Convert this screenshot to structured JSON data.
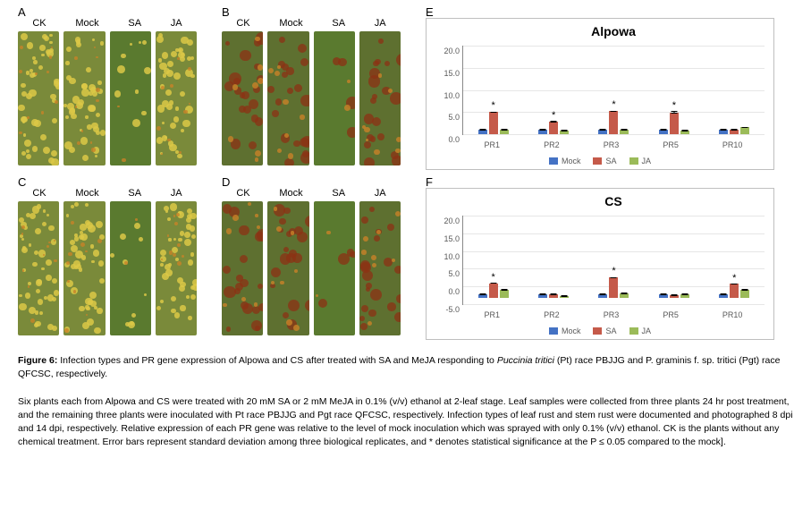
{
  "panels": {
    "A": {
      "letter": "A",
      "labels": [
        "CK",
        "Mock",
        "SA",
        "JA"
      ]
    },
    "B": {
      "letter": "B",
      "labels": [
        "CK",
        "Mock",
        "SA",
        "JA"
      ]
    },
    "C": {
      "letter": "C",
      "labels": [
        "CK",
        "Mock",
        "SA",
        "JA"
      ]
    },
    "D": {
      "letter": "D",
      "labels": [
        "CK",
        "Mock",
        "SA",
        "JA"
      ]
    },
    "E": {
      "letter": "E"
    },
    "F": {
      "letter": "F"
    }
  },
  "charts": {
    "alpowa": {
      "title": "Alpowa",
      "ymin": 0,
      "ymax": 20,
      "ytick_step": 5,
      "ytick_labels": [
        "0.0",
        "5.0",
        "10.0",
        "15.0",
        "20.0"
      ],
      "categories": [
        "PR1",
        "PR2",
        "PR3",
        "PR5",
        "PR10"
      ],
      "series": [
        {
          "name": "Mock",
          "color": "#4472c4",
          "values": [
            1.0,
            1.0,
            1.0,
            1.0,
            1.0
          ],
          "err": [
            0.1,
            0.2,
            0.1,
            0.1,
            0.1
          ],
          "sig": [
            false,
            false,
            false,
            false,
            false
          ]
        },
        {
          "name": "SA",
          "color": "#c55a4a",
          "values": [
            5.0,
            2.8,
            5.2,
            4.9,
            1.1
          ],
          "err": [
            0.6,
            1.0,
            0.4,
            1.2,
            0.3
          ],
          "sig": [
            true,
            true,
            true,
            true,
            false
          ]
        },
        {
          "name": "JA",
          "color": "#9bbb59",
          "values": [
            1.0,
            0.9,
            1.1,
            0.8,
            1.6
          ],
          "err": [
            0.3,
            0.2,
            0.2,
            0.1,
            1.0
          ],
          "sig": [
            false,
            false,
            false,
            false,
            false
          ]
        }
      ],
      "legend": [
        "Mock",
        "SA",
        "JA"
      ],
      "title_fontsize": 14,
      "label_fontsize": 9,
      "grid_color": "#e6e6e6",
      "background_color": "#ffffff",
      "border_color": "#bfbfbf"
    },
    "cs": {
      "title": "CS",
      "ymin": -5,
      "ymax": 20,
      "ytick_step": 5,
      "ytick_labels": [
        "-5.0",
        "0.0",
        "5.0",
        "10.0",
        "15.0",
        "20.0"
      ],
      "categories": [
        "PR1",
        "PR2",
        "PR3",
        "PR5",
        "PR10"
      ],
      "series": [
        {
          "name": "Mock",
          "color": "#4472c4",
          "values": [
            1.0,
            1.0,
            1.0,
            1.0,
            1.0
          ],
          "err": [
            0.1,
            0.1,
            0.1,
            0.1,
            0.3
          ],
          "sig": [
            false,
            false,
            false,
            false,
            false
          ]
        },
        {
          "name": "SA",
          "color": "#c55a4a",
          "values": [
            4.2,
            1.0,
            5.8,
            0.9,
            4.0
          ],
          "err": [
            0.4,
            0.7,
            0.5,
            0.4,
            0.6
          ],
          "sig": [
            true,
            false,
            true,
            false,
            true
          ]
        },
        {
          "name": "JA",
          "color": "#9bbb59",
          "values": [
            2.3,
            0.6,
            1.3,
            1.0,
            2.4
          ],
          "err": [
            0.5,
            0.4,
            0.3,
            0.2,
            0.4
          ],
          "sig": [
            false,
            false,
            false,
            false,
            false
          ]
        }
      ],
      "legend": [
        "Mock",
        "SA",
        "JA"
      ],
      "title_fontsize": 14,
      "label_fontsize": 9,
      "grid_color": "#e6e6e6",
      "background_color": "#ffffff",
      "border_color": "#bfbfbf"
    }
  },
  "caption": {
    "lead": "Figure 6:",
    "title_html": "Infection types and PR gene expression of Alpowa and CS after treated with SA and MeJA responding to <em>Puccinia tritici</em> (Pt) race PBJJG and P. graminis f. sp. tritici (Pgt) race QFCSC, respectively.",
    "body": "Six plants each from Alpowa and CS were treated with 20 mM SA or 2 mM MeJA in 0.1% (v/v) ethanol at 2-leaf stage. Leaf samples were collected from three plants 24 hr post treatment, and the remaining three plants were inoculated with Pt race PBJJG and Pgt race QFCSC, respectively. Infection types of leaf rust and stem rust were documented and photographed 8 dpi and 14 dpi, respectively. Relative expression of each PR gene was relative to the level of mock inoculation which was sprayed with only 0.1% (v/v) ethanol. CK is the plants without any chemical treatment. Error bars represent standard deviation among three biological replicates, and * denotes statistical significance at the P ≤ 0.05 compared to the mock]."
  },
  "colors": {
    "mock": "#4472c4",
    "sa": "#c55a4a",
    "ja": "#9bbb59"
  }
}
